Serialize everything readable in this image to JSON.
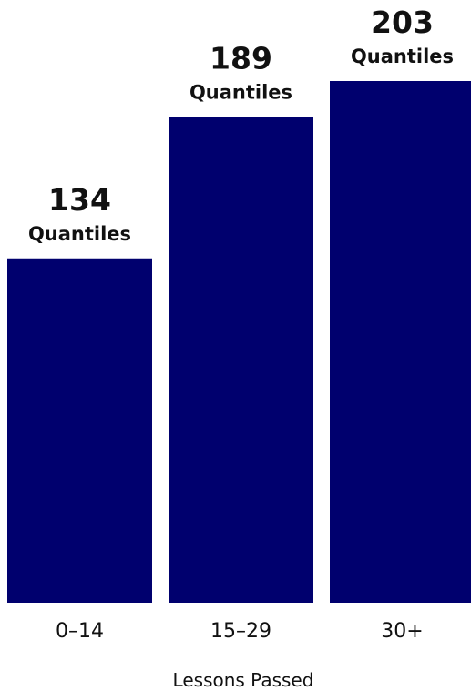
{
  "chart_data": {
    "type": "bar",
    "categories": [
      "0–14",
      "15–29",
      "30+"
    ],
    "values": [
      134,
      189,
      203
    ],
    "value_unit_label": "Quantiles",
    "xlabel": "Lessons Passed",
    "ylabel": "",
    "title": "",
    "ylim": [
      0,
      203
    ],
    "grid": false,
    "bar_color": "#00006e"
  }
}
